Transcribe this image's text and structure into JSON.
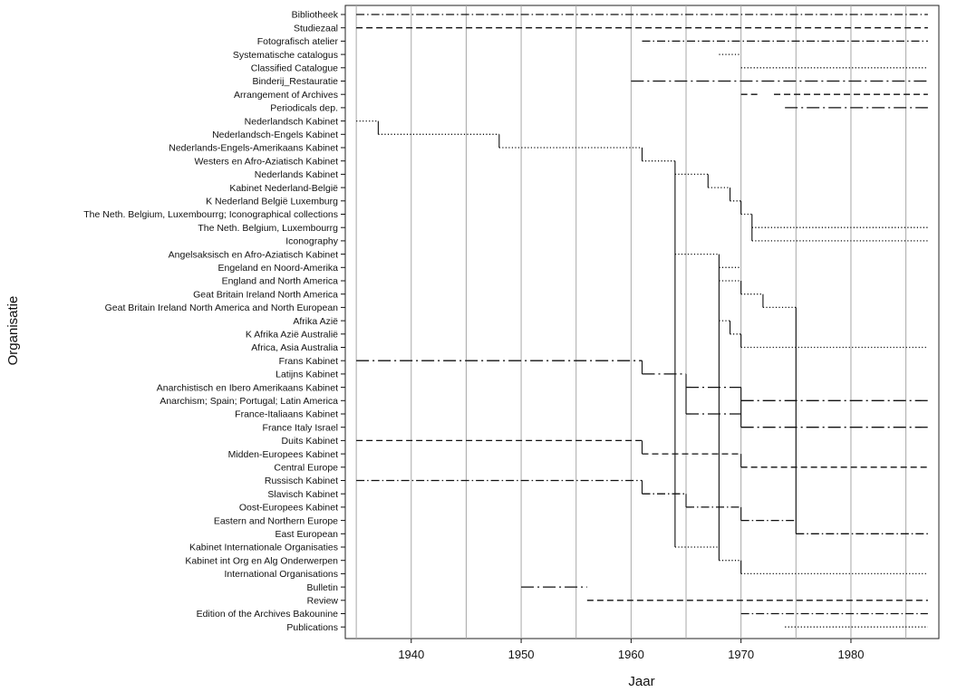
{
  "chart_data": {
    "type": "timeline",
    "xlabel": "Jaar",
    "ylabel": "Organisatie",
    "xlim": [
      1934,
      1988
    ],
    "xticks": [
      1940,
      1950,
      1960,
      1970,
      1980
    ],
    "xtick_labels": [
      "1940",
      "1950",
      "1960",
      "1970",
      "1980"
    ],
    "vertical_gridlines": [
      1935,
      1940,
      1945,
      1950,
      1955,
      1960,
      1965,
      1970,
      1975,
      1980,
      1985
    ],
    "grid": "vertical",
    "rows": [
      {
        "label": "Bibliotheek",
        "style": "dash-dot",
        "segments": [
          [
            1935,
            1987
          ]
        ]
      },
      {
        "label": "Studiezaal",
        "style": "dashed",
        "segments": [
          [
            1935,
            1987
          ]
        ]
      },
      {
        "label": "Fotografisch atelier",
        "style": "dash-dot",
        "segments": [
          [
            1961,
            1987
          ]
        ]
      },
      {
        "label": "Systematische catalogus",
        "style": "dotted",
        "segments": [
          [
            1968,
            1970
          ]
        ]
      },
      {
        "label": "Classified Catalogue",
        "style": "dotted",
        "segments": [
          [
            1970,
            1987
          ]
        ]
      },
      {
        "label": "Binderij_Restauratie",
        "style": "dash-dot-long",
        "segments": [
          [
            1960,
            1987
          ]
        ]
      },
      {
        "label": "Arrangement of Archives",
        "style": "dashed",
        "segments": [
          [
            1970,
            1971.5
          ],
          [
            1973,
            1987
          ]
        ]
      },
      {
        "label": "Periodicals dep.",
        "style": "dash-dot-long",
        "segments": [
          [
            1974,
            1987
          ]
        ]
      },
      {
        "label": "Nederlandsch Kabinet",
        "style": "dotted",
        "segments": [
          [
            1935,
            1937
          ]
        ]
      },
      {
        "label": "Nederlandsch-Engels Kabinet",
        "style": "dotted",
        "segments": [
          [
            1937,
            1948
          ]
        ]
      },
      {
        "label": "Nederlands-Engels-Amerikaans Kabinet",
        "style": "dotted",
        "segments": [
          [
            1948,
            1961
          ]
        ]
      },
      {
        "label": "Westers en Afro-Aziatisch Kabinet",
        "style": "dotted",
        "segments": [
          [
            1961,
            1964
          ]
        ]
      },
      {
        "label": "Nederlands Kabinet",
        "style": "dotted",
        "segments": [
          [
            1964,
            1967
          ]
        ]
      },
      {
        "label": "Kabinet Nederland-België",
        "style": "dotted",
        "segments": [
          [
            1967,
            1969
          ]
        ]
      },
      {
        "label": "K Nederland België Luxemburg",
        "style": "dotted",
        "segments": [
          [
            1969,
            1970
          ]
        ]
      },
      {
        "label": "The Neth. Belgium, Luxembourrg; Iconographical collections",
        "style": "dotted",
        "segments": [
          [
            1970,
            1971
          ]
        ]
      },
      {
        "label": "The Neth. Belgium, Luxembourrg",
        "style": "dotted",
        "segments": [
          [
            1971,
            1987
          ]
        ]
      },
      {
        "label": "Iconography",
        "style": "dotted",
        "segments": [
          [
            1971,
            1987
          ]
        ]
      },
      {
        "label": "Angelsaksisch en Afro-Aziatisch Kabinet",
        "style": "dotted",
        "segments": [
          [
            1964,
            1968
          ]
        ]
      },
      {
        "label": "Engeland en Noord-Amerika",
        "style": "dotted",
        "segments": [
          [
            1968,
            1970
          ]
        ]
      },
      {
        "label": "England and North America",
        "style": "dotted",
        "segments": [
          [
            1968,
            1970
          ]
        ]
      },
      {
        "label": "Geat Britain Ireland North America",
        "style": "dotted",
        "segments": [
          [
            1970,
            1972
          ]
        ]
      },
      {
        "label": "Geat Britain Ireland North America and North European",
        "style": "dotted",
        "segments": [
          [
            1972,
            1975
          ]
        ]
      },
      {
        "label": "Afrika Azië",
        "style": "dotted",
        "segments": [
          [
            1968,
            1969
          ]
        ]
      },
      {
        "label": "K Afrika Azië Australië",
        "style": "dotted",
        "segments": [
          [
            1969,
            1970
          ]
        ]
      },
      {
        "label": "Africa, Asia Australia",
        "style": "dotted",
        "segments": [
          [
            1970,
            1987
          ]
        ]
      },
      {
        "label": "Frans Kabinet",
        "style": "dash-dot-long",
        "segments": [
          [
            1935,
            1961
          ]
        ]
      },
      {
        "label": "Latijns Kabinet",
        "style": "dash-dot-long",
        "segments": [
          [
            1961,
            1965
          ]
        ]
      },
      {
        "label": "Anarchistisch en Ibero Amerikaans Kabinet",
        "style": "dash-dot-long",
        "segments": [
          [
            1965,
            1970
          ]
        ]
      },
      {
        "label": "Anarchism; Spain; Portugal; Latin America",
        "style": "dash-dot-long",
        "segments": [
          [
            1970,
            1987
          ]
        ]
      },
      {
        "label": "France-Italiaans Kabinet",
        "style": "dash-dot-long",
        "segments": [
          [
            1965,
            1970
          ]
        ]
      },
      {
        "label": "France Italy Israel",
        "style": "dash-dot-long",
        "segments": [
          [
            1970,
            1987
          ]
        ]
      },
      {
        "label": "Duits Kabinet",
        "style": "dashed",
        "segments": [
          [
            1935,
            1961
          ]
        ]
      },
      {
        "label": "Midden-Europees Kabinet",
        "style": "dashed",
        "segments": [
          [
            1961,
            1970
          ]
        ]
      },
      {
        "label": "Central Europe",
        "style": "dashed",
        "segments": [
          [
            1970,
            1987
          ]
        ]
      },
      {
        "label": "Russisch Kabinet",
        "style": "dash-dot",
        "segments": [
          [
            1935,
            1961
          ]
        ]
      },
      {
        "label": "Slavisch Kabinet",
        "style": "dash-dot",
        "segments": [
          [
            1961,
            1965
          ]
        ]
      },
      {
        "label": "Oost-Europees Kabinet",
        "style": "dash-dot",
        "segments": [
          [
            1965,
            1970
          ]
        ]
      },
      {
        "label": "Eastern and Northern Europe",
        "style": "dash-dot",
        "segments": [
          [
            1970,
            1975
          ]
        ]
      },
      {
        "label": "East European",
        "style": "dash-dot",
        "segments": [
          [
            1975,
            1987
          ]
        ]
      },
      {
        "label": "Kabinet Internationale Organisaties",
        "style": "dotted",
        "segments": [
          [
            1964,
            1968
          ]
        ]
      },
      {
        "label": "Kabinet int Org en Alg Onderwerpen",
        "style": "dotted",
        "segments": [
          [
            1968,
            1970
          ]
        ]
      },
      {
        "label": "International Organisations",
        "style": "dotted",
        "segments": [
          [
            1970,
            1987
          ]
        ]
      },
      {
        "label": "Bulletin",
        "style": "dash-dot-long",
        "segments": [
          [
            1950,
            1956
          ]
        ]
      },
      {
        "label": "Review",
        "style": "dashed",
        "segments": [
          [
            1956,
            1987
          ]
        ]
      },
      {
        "label": "Edition of the Archives Bakounine",
        "style": "dash-dot",
        "segments": [
          [
            1970,
            1987
          ]
        ]
      },
      {
        "label": "Publications",
        "style": "dotted",
        "segments": [
          [
            1974,
            1987
          ]
        ]
      }
    ],
    "connectors": [
      {
        "year": 1937,
        "from": "Nederlandsch Kabinet",
        "to": "Nederlandsch-Engels Kabinet"
      },
      {
        "year": 1948,
        "from": "Nederlandsch-Engels Kabinet",
        "to": "Nederlands-Engels-Amerikaans Kabinet"
      },
      {
        "year": 1961,
        "from": "Nederlands-Engels-Amerikaans Kabinet",
        "to": "Westers en Afro-Aziatisch Kabinet"
      },
      {
        "year": 1964,
        "from": "Westers en Afro-Aziatisch Kabinet",
        "to": "Kabinet Internationale Organisaties"
      },
      {
        "year": 1967,
        "from": "Nederlands Kabinet",
        "to": "Kabinet Nederland-België"
      },
      {
        "year": 1969,
        "from": "Kabinet Nederland-België",
        "to": "K Nederland België Luxemburg"
      },
      {
        "year": 1970,
        "from": "K Nederland België Luxemburg",
        "to": "The Neth. Belgium, Luxembourrg; Iconographical collections"
      },
      {
        "year": 1971,
        "from": "The Neth. Belgium, Luxembourrg; Iconographical collections",
        "to": "Iconography"
      },
      {
        "year": 1968,
        "from": "Angelsaksisch en Afro-Aziatisch Kabinet",
        "to": "Kabinet int Org en Alg Onderwerpen"
      },
      {
        "year": 1970,
        "from": "England and North America",
        "to": "Geat Britain Ireland North America"
      },
      {
        "year": 1972,
        "from": "Geat Britain Ireland North America",
        "to": "Geat Britain Ireland North America and North European"
      },
      {
        "year": 1975,
        "from": "Geat Britain Ireland North America and North European",
        "to": "East European"
      },
      {
        "year": 1969,
        "from": "Afrika Azië",
        "to": "K Afrika Azië Australië"
      },
      {
        "year": 1970,
        "from": "K Afrika Azië Australië",
        "to": "Africa, Asia Australia"
      },
      {
        "year": 1961,
        "from": "Frans Kabinet",
        "to": "Latijns Kabinet"
      },
      {
        "year": 1965,
        "from": "Latijns Kabinet",
        "to": "France-Italiaans Kabinet"
      },
      {
        "year": 1970,
        "from": "Anarchistisch en Ibero Amerikaans Kabinet",
        "to": "France Italy Israel"
      },
      {
        "year": 1961,
        "from": "Duits Kabinet",
        "to": "Midden-Europees Kabinet"
      },
      {
        "year": 1970,
        "from": "Midden-Europees Kabinet",
        "to": "Central Europe"
      },
      {
        "year": 1961,
        "from": "Russisch Kabinet",
        "to": "Slavisch Kabinet"
      },
      {
        "year": 1965,
        "from": "Slavisch Kabinet",
        "to": "Oost-Europees Kabinet"
      },
      {
        "year": 1970,
        "from": "Oost-Europees Kabinet",
        "to": "Eastern and Northern Europe"
      },
      {
        "year": 1970,
        "from": "Kabinet int Org en Alg Onderwerpen",
        "to": "International Organisations"
      }
    ]
  }
}
